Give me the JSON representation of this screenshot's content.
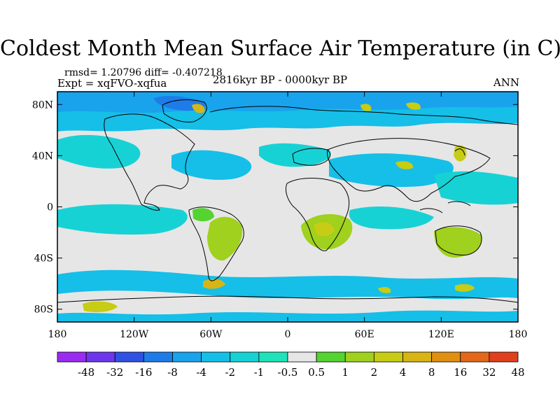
{
  "title": "Coldest Month Mean Surface Air Temperature (in C)",
  "stats": {
    "rmsd_diff": "rmsd= 1.20796 diff= -0.407218",
    "experiment": "Expt = xqFVO-xqfua",
    "period": "2816kyr BP - 0000kyr BP",
    "season": "ANN"
  },
  "map": {
    "projection": "cylindrical equidistant",
    "lon_range": [
      -180,
      180
    ],
    "lat_range": [
      -90,
      90
    ],
    "lon_ticks": [
      {
        "value": -180,
        "label": "180"
      },
      {
        "value": -120,
        "label": "120W"
      },
      {
        "value": -60,
        "label": "60W"
      },
      {
        "value": 0,
        "label": "0"
      },
      {
        "value": 60,
        "label": "60E"
      },
      {
        "value": 120,
        "label": "120E"
      },
      {
        "value": 180,
        "label": "180"
      }
    ],
    "lat_ticks": [
      {
        "value": 80,
        "label": "80N"
      },
      {
        "value": 40,
        "label": "40N"
      },
      {
        "value": 0,
        "label": "0"
      },
      {
        "value": -40,
        "label": "40S"
      },
      {
        "value": -80,
        "label": "80S"
      }
    ]
  },
  "colorbar": {
    "colors": [
      "#9a2cf2",
      "#6c37ec",
      "#2f52e2",
      "#1e7ce8",
      "#19a3ec",
      "#15bfe8",
      "#17d2d5",
      "#1fe3b8",
      "#e6e6e6",
      "#54d331",
      "#9fd11e",
      "#c7cc14",
      "#d8b415",
      "#e08f11",
      "#e4671a",
      "#e0401e"
    ],
    "labels": [
      "-48",
      "-32",
      "-16",
      "-8",
      "-4",
      "-2",
      "-1",
      "-0.5",
      "0.5",
      "1",
      "2",
      "4",
      "8",
      "16",
      "32",
      "48"
    ]
  }
}
